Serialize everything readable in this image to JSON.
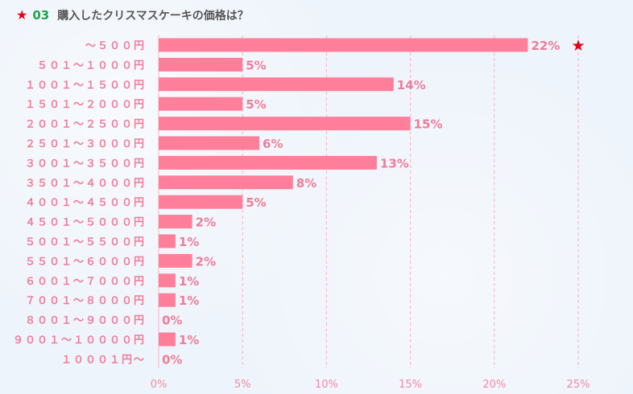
{
  "header": {
    "marker": "★",
    "number": "03",
    "title": "購入したクリスマスケーキの価格は？"
  },
  "colors": {
    "bar": "#ff7f9b",
    "label": "#ee7d98",
    "tick": "#f08aa4",
    "grid": "#f7b3c4",
    "highlight_star": "#e60012",
    "number": "#1fa34a"
  },
  "chart_data": {
    "type": "bar",
    "orientation": "horizontal",
    "categories": [
      "～５００円",
      "５０１～１０００円",
      "１００１～１５００円",
      "１５０１～２０００円",
      "２００１～２５００円",
      "２５０１～３０００円",
      "３００１～３５００円",
      "３５０１～４０００円",
      "４００１～４５００円",
      "４５０１～５０００円",
      "５００１～５５００円",
      "５５０１～６０００円",
      "６００１～７０００円",
      "７００１～８０００円",
      "８００１～９０００円",
      "９００１～１００００円",
      "１０００１円～"
    ],
    "values": [
      22,
      5,
      14,
      5,
      15,
      6,
      13,
      8,
      5,
      2,
      1,
      2,
      1,
      1,
      0,
      1,
      0
    ],
    "value_labels": [
      "22%",
      "5%",
      "14%",
      "5%",
      "15%",
      "6%",
      "13%",
      "8%",
      "5%",
      "2%",
      "1%",
      "2%",
      "1%",
      "1%",
      "0%",
      "1%",
      "0%"
    ],
    "xlim": [
      0,
      25
    ],
    "xticks": [
      0,
      5,
      10,
      15,
      20,
      25
    ],
    "xtick_labels": [
      "0%",
      "5%",
      "10%",
      "15%",
      "20%",
      "25%"
    ],
    "highlight_index": 0,
    "highlight_marker": "★",
    "grid": "vertical dashed"
  }
}
